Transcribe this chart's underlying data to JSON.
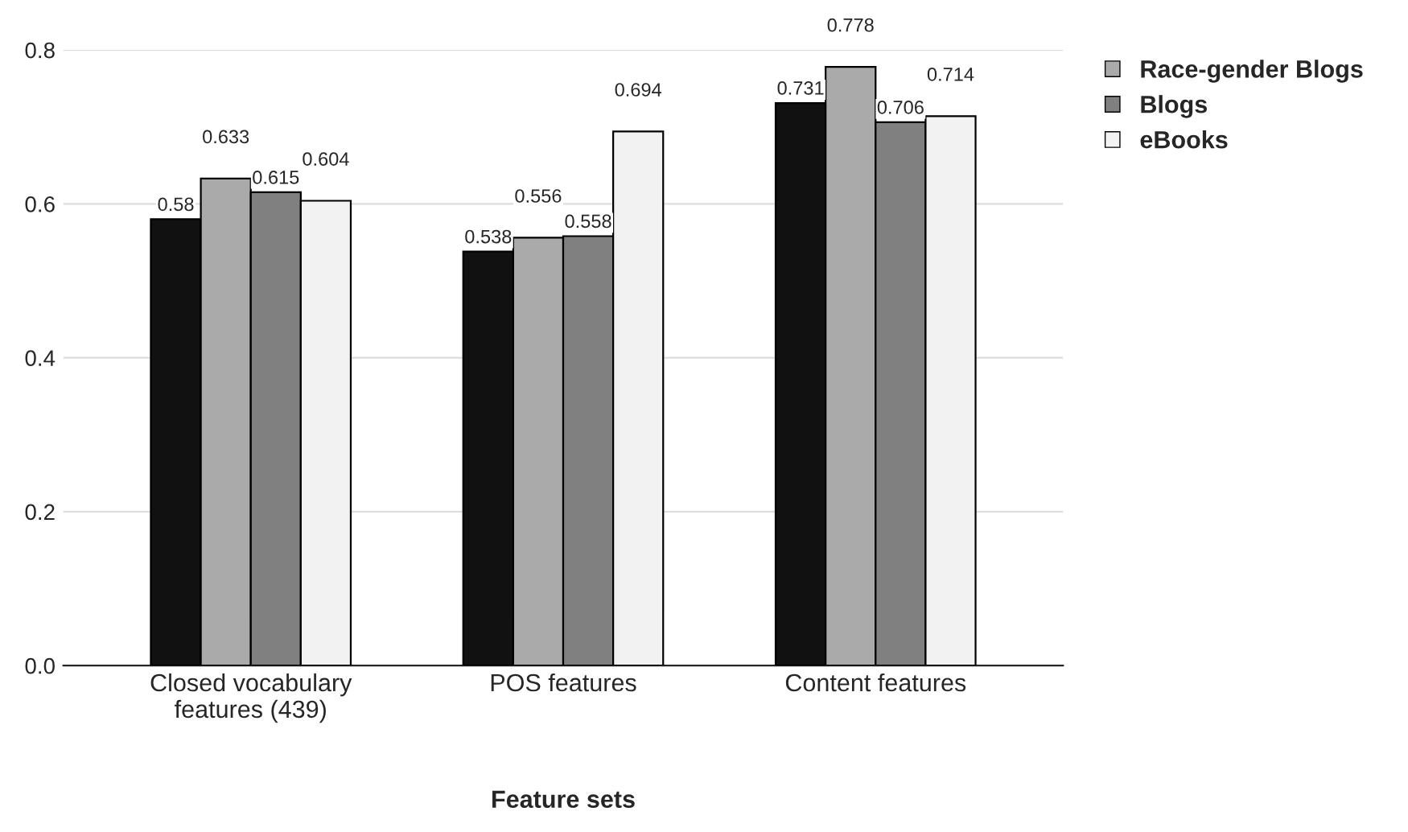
{
  "chart_data": {
    "type": "bar",
    "xlabel": "Feature sets",
    "categories": [
      "Closed vocabulary\nfeatures (439)",
      "POS features",
      "Content features"
    ],
    "series": [
      {
        "color": "#111111",
        "values": [
          0.58,
          0.538,
          0.731
        ]
      },
      {
        "name": "Race-gender Blogs",
        "color": "#aaaaaa",
        "values": [
          0.633,
          0.556,
          0.778
        ]
      },
      {
        "name": "Blogs",
        "color": "#808080",
        "values": [
          0.615,
          0.558,
          0.706
        ]
      },
      {
        "name": "eBooks",
        "color": "#f2f2f2",
        "values": [
          0.604,
          0.694,
          0.714
        ]
      }
    ],
    "ylim": [
      0,
      0.8
    ],
    "yticks": [
      {
        "value": 0,
        "label": "0.0"
      },
      {
        "value": 0.2,
        "label": "0.2"
      },
      {
        "value": 0.4,
        "label": "0.4"
      },
      {
        "value": 0.6,
        "label": "0.6"
      },
      {
        "value": 0.8,
        "label": "0.8"
      }
    ],
    "grid": "y",
    "legend": "top right",
    "data_labels": true
  }
}
